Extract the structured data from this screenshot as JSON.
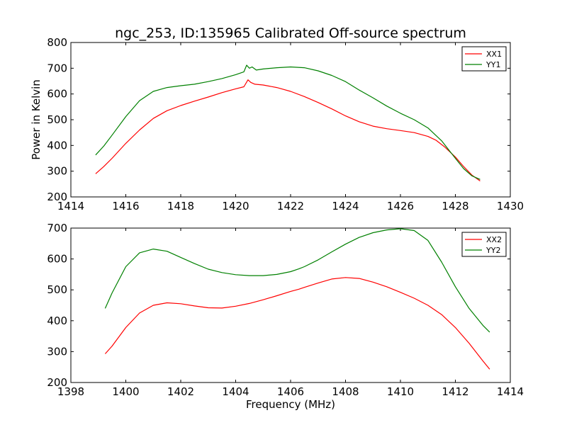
{
  "figure": {
    "title": "ngc_253, ID:135965 Calibrated Off-source spectrum"
  },
  "chart_data": [
    {
      "type": "line",
      "ylabel": "Power in Kelvin",
      "xlabel": "",
      "xlim": [
        1414,
        1430
      ],
      "ylim": [
        200,
        800
      ],
      "xticks": [
        1414,
        1416,
        1418,
        1420,
        1422,
        1424,
        1426,
        1428,
        1430
      ],
      "yticks": [
        200,
        300,
        400,
        500,
        600,
        700,
        800
      ],
      "grid": false,
      "legend_position": "top-right",
      "series": [
        {
          "name": "XX1",
          "color": "#ff0000",
          "points": [
            [
              1414.9,
              290
            ],
            [
              1415.2,
              318
            ],
            [
              1415.5,
              350
            ],
            [
              1416.0,
              408
            ],
            [
              1416.5,
              460
            ],
            [
              1417.0,
              505
            ],
            [
              1417.5,
              535
            ],
            [
              1418.0,
              555
            ],
            [
              1418.5,
              572
            ],
            [
              1419.0,
              588
            ],
            [
              1419.5,
              605
            ],
            [
              1420.0,
              620
            ],
            [
              1420.3,
              628
            ],
            [
              1420.45,
              655
            ],
            [
              1420.55,
              645
            ],
            [
              1420.7,
              638
            ],
            [
              1421.0,
              635
            ],
            [
              1421.5,
              625
            ],
            [
              1422.0,
              610
            ],
            [
              1422.5,
              590
            ],
            [
              1423.0,
              567
            ],
            [
              1423.5,
              542
            ],
            [
              1424.0,
              515
            ],
            [
              1424.5,
              492
            ],
            [
              1425.0,
              475
            ],
            [
              1425.5,
              465
            ],
            [
              1426.0,
              458
            ],
            [
              1426.5,
              450
            ],
            [
              1427.0,
              435
            ],
            [
              1427.3,
              420
            ],
            [
              1427.6,
              395
            ],
            [
              1428.0,
              355
            ],
            [
              1428.3,
              318
            ],
            [
              1428.6,
              285
            ],
            [
              1428.9,
              262
            ]
          ]
        },
        {
          "name": "YY1",
          "color": "#008000",
          "points": [
            [
              1414.9,
              363
            ],
            [
              1415.2,
              398
            ],
            [
              1415.5,
              440
            ],
            [
              1416.0,
              512
            ],
            [
              1416.5,
              574
            ],
            [
              1417.0,
              610
            ],
            [
              1417.5,
              625
            ],
            [
              1418.0,
              632
            ],
            [
              1418.5,
              638
            ],
            [
              1419.0,
              648
            ],
            [
              1419.5,
              660
            ],
            [
              1420.0,
              675
            ],
            [
              1420.3,
              686
            ],
            [
              1420.4,
              712
            ],
            [
              1420.5,
              700
            ],
            [
              1420.6,
              705
            ],
            [
              1420.75,
              693
            ],
            [
              1421.0,
              697
            ],
            [
              1421.5,
              702
            ],
            [
              1422.0,
              705
            ],
            [
              1422.5,
              702
            ],
            [
              1423.0,
              690
            ],
            [
              1423.5,
              672
            ],
            [
              1424.0,
              648
            ],
            [
              1424.5,
              615
            ],
            [
              1425.0,
              585
            ],
            [
              1425.5,
              553
            ],
            [
              1426.0,
              525
            ],
            [
              1426.5,
              500
            ],
            [
              1427.0,
              468
            ],
            [
              1427.5,
              418
            ],
            [
              1428.0,
              350
            ],
            [
              1428.3,
              310
            ],
            [
              1428.6,
              282
            ],
            [
              1428.9,
              268
            ]
          ]
        }
      ]
    },
    {
      "type": "line",
      "ylabel": "",
      "xlabel": "Frequency (MHz)",
      "xlim": [
        1398,
        1414
      ],
      "ylim": [
        200,
        700
      ],
      "xticks": [
        1398,
        1400,
        1402,
        1404,
        1406,
        1408,
        1410,
        1412,
        1414
      ],
      "yticks": [
        200,
        300,
        400,
        500,
        600,
        700
      ],
      "grid": false,
      "legend_position": "top-right",
      "series": [
        {
          "name": "XX2",
          "color": "#ff0000",
          "points": [
            [
              1399.25,
              293
            ],
            [
              1399.5,
              318
            ],
            [
              1400.0,
              378
            ],
            [
              1400.5,
              425
            ],
            [
              1401.0,
              450
            ],
            [
              1401.5,
              458
            ],
            [
              1402.0,
              455
            ],
            [
              1402.5,
              448
            ],
            [
              1403.0,
              442
            ],
            [
              1403.5,
              441
            ],
            [
              1404.0,
              447
            ],
            [
              1404.5,
              456
            ],
            [
              1405.0,
              468
            ],
            [
              1405.5,
              481
            ],
            [
              1406.0,
              495
            ],
            [
              1406.3,
              502
            ],
            [
              1406.5,
              508
            ],
            [
              1407.0,
              522
            ],
            [
              1407.5,
              535
            ],
            [
              1408.0,
              540
            ],
            [
              1408.5,
              537
            ],
            [
              1409.0,
              525
            ],
            [
              1409.5,
              510
            ],
            [
              1410.0,
              492
            ],
            [
              1410.5,
              473
            ],
            [
              1411.0,
              450
            ],
            [
              1411.5,
              420
            ],
            [
              1412.0,
              378
            ],
            [
              1412.5,
              327
            ],
            [
              1413.0,
              270
            ],
            [
              1413.25,
              243
            ]
          ]
        },
        {
          "name": "YY2",
          "color": "#008000",
          "points": [
            [
              1399.25,
              440
            ],
            [
              1399.5,
              490
            ],
            [
              1400.0,
              575
            ],
            [
              1400.5,
              620
            ],
            [
              1401.0,
              632
            ],
            [
              1401.5,
              625
            ],
            [
              1402.0,
              605
            ],
            [
              1402.5,
              585
            ],
            [
              1403.0,
              567
            ],
            [
              1403.5,
              556
            ],
            [
              1404.0,
              549
            ],
            [
              1404.5,
              546
            ],
            [
              1405.0,
              546
            ],
            [
              1405.5,
              550
            ],
            [
              1406.0,
              559
            ],
            [
              1406.3,
              568
            ],
            [
              1406.5,
              575
            ],
            [
              1407.0,
              597
            ],
            [
              1407.5,
              623
            ],
            [
              1408.0,
              648
            ],
            [
              1408.5,
              670
            ],
            [
              1409.0,
              685
            ],
            [
              1409.5,
              694
            ],
            [
              1410.0,
              698
            ],
            [
              1410.5,
              692
            ],
            [
              1411.0,
              660
            ],
            [
              1411.5,
              590
            ],
            [
              1412.0,
              510
            ],
            [
              1412.5,
              440
            ],
            [
              1413.0,
              385
            ],
            [
              1413.25,
              363
            ]
          ]
        }
      ]
    }
  ]
}
